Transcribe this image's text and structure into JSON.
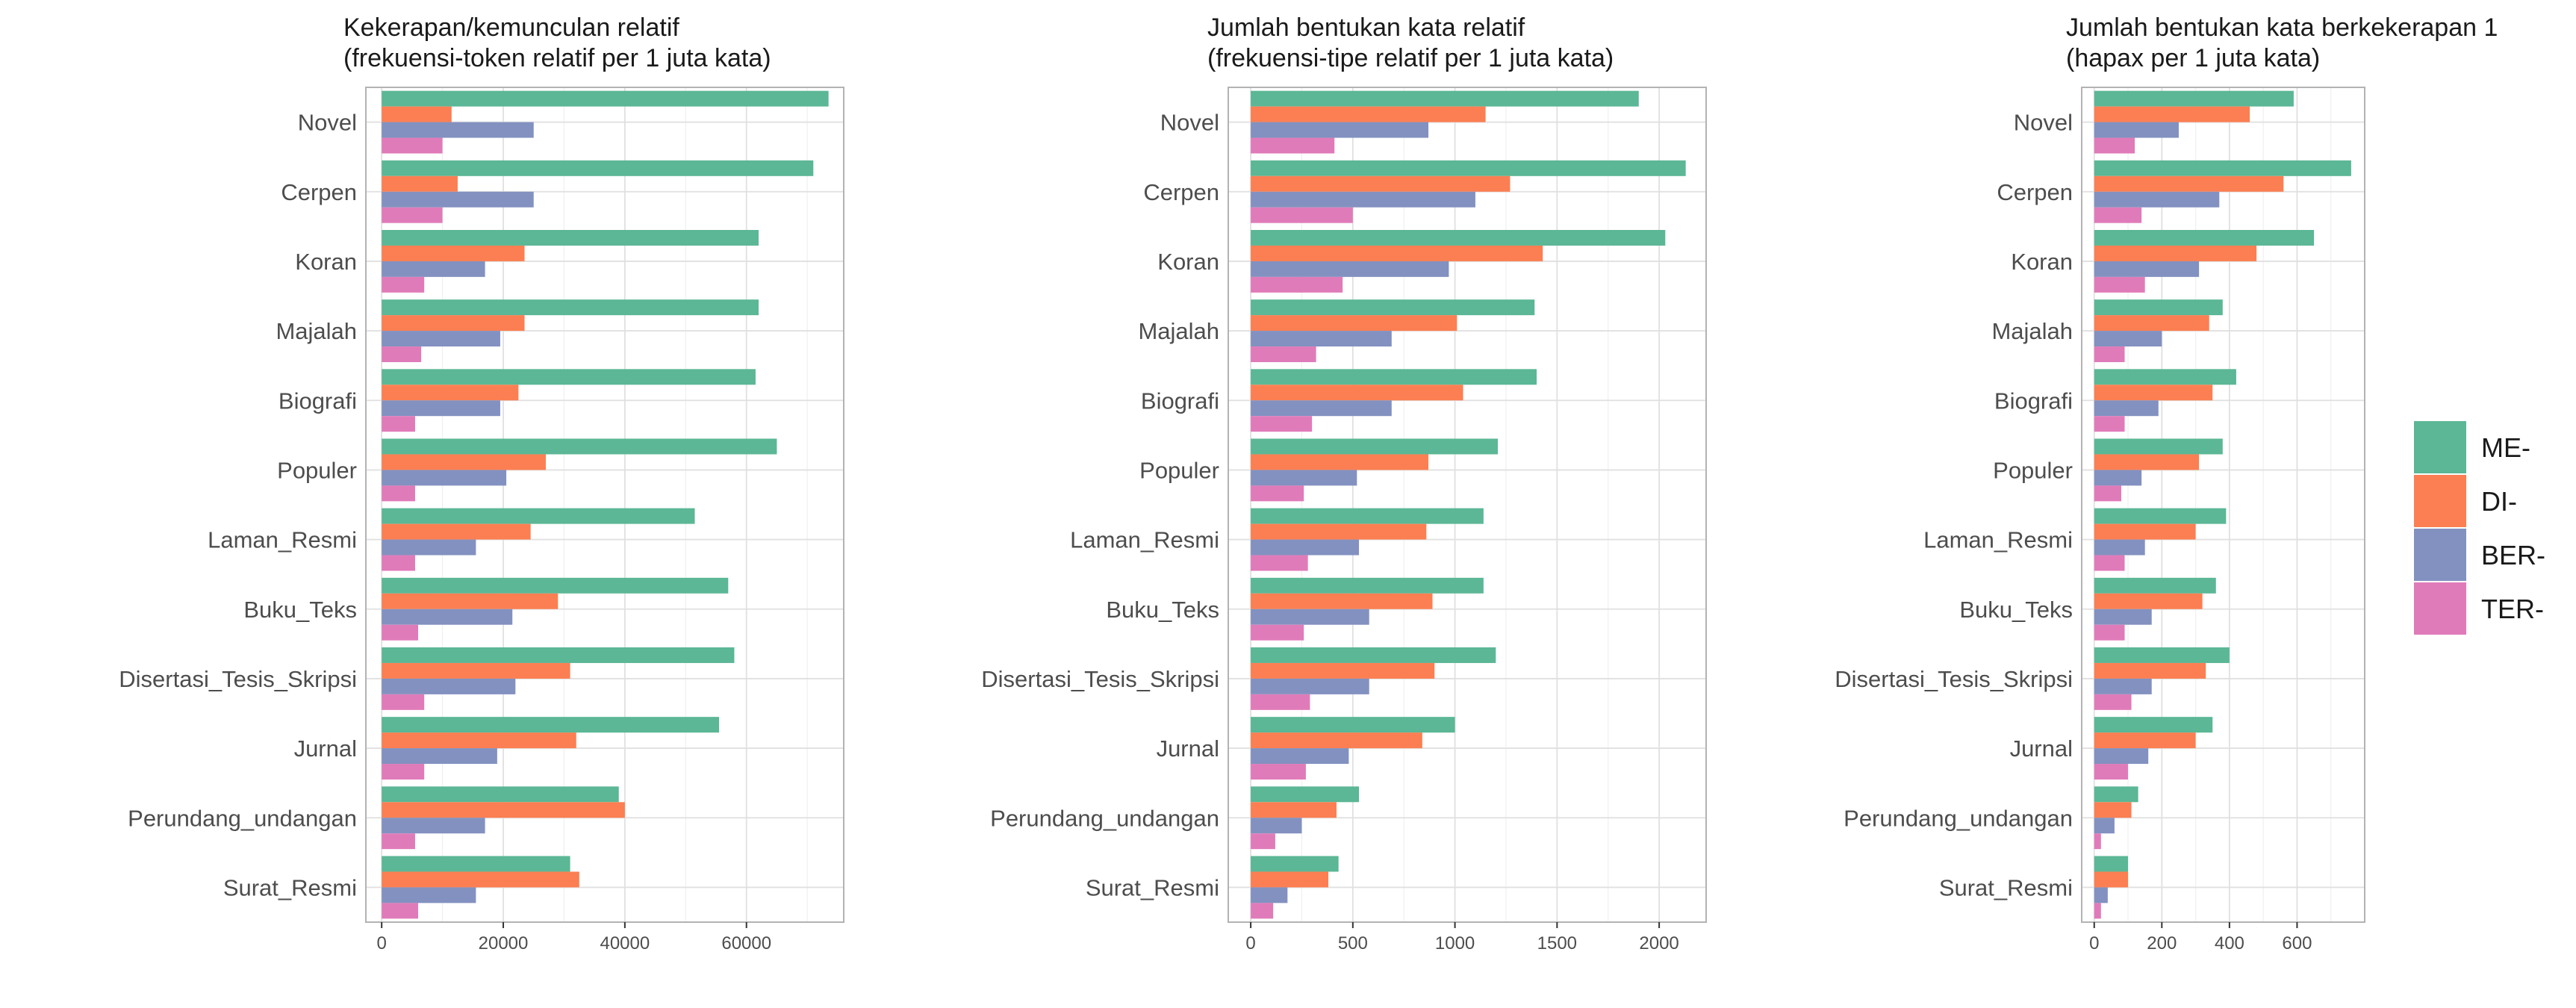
{
  "chart_data": [
    {
      "type": "bar",
      "orientation": "horizontal",
      "title": "Kekerapan/kemunculan relatif\n(frekuensi-token relatif per 1 juta kata)",
      "xlabel": "",
      "ylabel": "",
      "xlim": [
        -2600,
        76000
      ],
      "xticks": [
        0,
        20000,
        40000,
        60000
      ],
      "xtick_labels": [
        "0",
        "20000",
        "40000",
        "60000"
      ],
      "grid": true,
      "categories": [
        "Novel",
        "Cerpen",
        "Koran",
        "Majalah",
        "Biografi",
        "Populer",
        "Laman_Resmi",
        "Buku_Teks",
        "Disertasi_Tesis_Skripsi",
        "Jurnal",
        "Perundang_undangan",
        "Surat_Resmi"
      ],
      "series": [
        {
          "name": "ME-",
          "values": [
            73500,
            71000,
            62000,
            62000,
            61500,
            65000,
            51500,
            57000,
            58000,
            55500,
            39000,
            31000
          ]
        },
        {
          "name": "DI-",
          "values": [
            11500,
            12500,
            23500,
            23500,
            22500,
            27000,
            24500,
            29000,
            31000,
            32000,
            40000,
            32500
          ]
        },
        {
          "name": "BER-",
          "values": [
            25000,
            25000,
            17000,
            19500,
            19500,
            20500,
            15500,
            21500,
            22000,
            19000,
            17000,
            15500
          ]
        },
        {
          "name": "TER-",
          "values": [
            10000,
            10000,
            7000,
            6500,
            5500,
            5500,
            5500,
            6000,
            7000,
            7000,
            5500,
            6000
          ]
        }
      ]
    },
    {
      "type": "bar",
      "orientation": "horizontal",
      "title": "Jumlah bentukan kata relatif\n(frekuensi-tipe relatif per 1 juta kata)",
      "xlabel": "",
      "ylabel": "",
      "xlim": [
        -110,
        2230
      ],
      "xticks": [
        0,
        500,
        1000,
        1500,
        2000
      ],
      "xtick_labels": [
        "0",
        "500",
        "1000",
        "1500",
        "2000"
      ],
      "grid": true,
      "categories": [
        "Novel",
        "Cerpen",
        "Koran",
        "Majalah",
        "Biografi",
        "Populer",
        "Laman_Resmi",
        "Buku_Teks",
        "Disertasi_Tesis_Skripsi",
        "Jurnal",
        "Perundang_undangan",
        "Surat_Resmi"
      ],
      "series": [
        {
          "name": "ME-",
          "values": [
            1900,
            2130,
            2030,
            1390,
            1400,
            1210,
            1140,
            1140,
            1200,
            1000,
            530,
            430
          ]
        },
        {
          "name": "DI-",
          "values": [
            1150,
            1270,
            1430,
            1010,
            1040,
            870,
            860,
            890,
            900,
            840,
            420,
            380
          ]
        },
        {
          "name": "BER-",
          "values": [
            870,
            1100,
            970,
            690,
            690,
            520,
            530,
            580,
            580,
            480,
            250,
            180
          ]
        },
        {
          "name": "TER-",
          "values": [
            410,
            500,
            450,
            320,
            300,
            260,
            280,
            260,
            290,
            270,
            120,
            110
          ]
        }
      ]
    },
    {
      "type": "bar",
      "orientation": "horizontal",
      "title": "Jumlah bentukan kata berkekerapan 1\n(hapax per 1 juta kata)",
      "xlabel": "",
      "ylabel": "",
      "xlim": [
        -37,
        800
      ],
      "xticks": [
        0,
        200,
        400,
        600
      ],
      "xtick_labels": [
        "0",
        "200",
        "400",
        "600"
      ],
      "grid": true,
      "categories": [
        "Novel",
        "Cerpen",
        "Koran",
        "Majalah",
        "Biografi",
        "Populer",
        "Laman_Resmi",
        "Buku_Teks",
        "Disertasi_Tesis_Skripsi",
        "Jurnal",
        "Perundang_undangan",
        "Surat_Resmi"
      ],
      "series": [
        {
          "name": "ME-",
          "values": [
            590,
            760,
            650,
            380,
            420,
            380,
            390,
            360,
            400,
            350,
            130,
            100
          ]
        },
        {
          "name": "DI-",
          "values": [
            460,
            560,
            480,
            340,
            350,
            310,
            300,
            320,
            330,
            300,
            110,
            100
          ]
        },
        {
          "name": "BER-",
          "values": [
            250,
            370,
            310,
            200,
            190,
            140,
            150,
            170,
            170,
            160,
            60,
            40
          ]
        },
        {
          "name": "TER-",
          "values": [
            120,
            140,
            150,
            90,
            90,
            80,
            90,
            90,
            110,
            100,
            20,
            20
          ]
        }
      ]
    }
  ],
  "legend": {
    "placement": "right",
    "items": [
      {
        "label": "ME-",
        "color": "#5BB795"
      },
      {
        "label": "DI-",
        "color": "#FB7F52"
      },
      {
        "label": "BER-",
        "color": "#8291C0"
      },
      {
        "label": "TER-",
        "color": "#E07BB9"
      }
    ]
  }
}
